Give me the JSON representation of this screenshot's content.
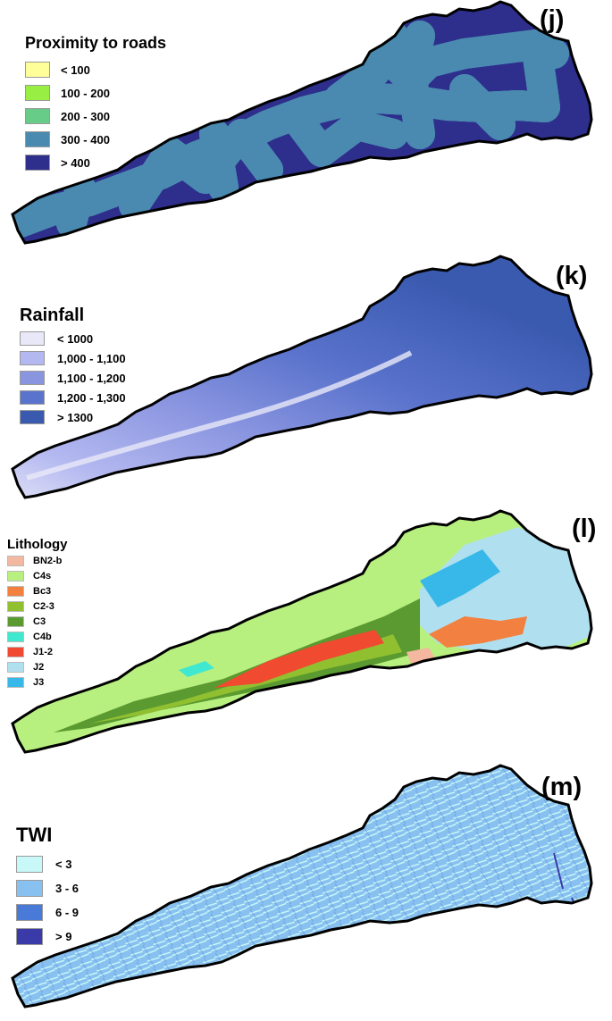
{
  "panels": {
    "j": {
      "label": "(j)",
      "legend_title": "Proximity to roads",
      "classes": [
        {
          "label": "< 100",
          "color": "#ffff99"
        },
        {
          "label": "100 - 200",
          "color": "#99ee44"
        },
        {
          "label": "200 - 300",
          "color": "#66cc88"
        },
        {
          "label": "300 - 400",
          "color": "#4a8ab0"
        },
        {
          "label": "> 400",
          "color": "#2e2e8c"
        }
      ]
    },
    "k": {
      "label": "(k)",
      "legend_title": "Rainfall",
      "classes": [
        {
          "label": "< 1000",
          "color": "#e8e8f8"
        },
        {
          "label": "1,000 - 1,100",
          "color": "#b3b8f0"
        },
        {
          "label": "1,100 - 1,200",
          "color": "#8a95e0"
        },
        {
          "label": "1,200 - 1,300",
          "color": "#5a73cc"
        },
        {
          "label": "> 1300",
          "color": "#3a5ab0"
        }
      ]
    },
    "l": {
      "label": "(l)",
      "legend_title": "Lithology",
      "classes": [
        {
          "label": "BN2-b",
          "color": "#f4b8a0"
        },
        {
          "label": "C4s",
          "color": "#b8f080"
        },
        {
          "label": "Bc3",
          "color": "#f28040"
        },
        {
          "label": "C2-3",
          "color": "#90c030"
        },
        {
          "label": "C3",
          "color": "#5a9a30"
        },
        {
          "label": "C4b",
          "color": "#40e8d0"
        },
        {
          "label": "J1-2",
          "color": "#f04a30"
        },
        {
          "label": "J2",
          "color": "#b0e0f0"
        },
        {
          "label": "J3",
          "color": "#38b8e8"
        }
      ]
    },
    "m": {
      "label": "(m)",
      "legend_title": "TWI",
      "classes": [
        {
          "label": "< 3",
          "color": "#c8f8f8"
        },
        {
          "label": "3 - 6",
          "color": "#88c0f0"
        },
        {
          "label": "6 - 9",
          "color": "#4a7ad8"
        },
        {
          "label": "> 9",
          "color": "#3a3aa8"
        }
      ]
    }
  }
}
